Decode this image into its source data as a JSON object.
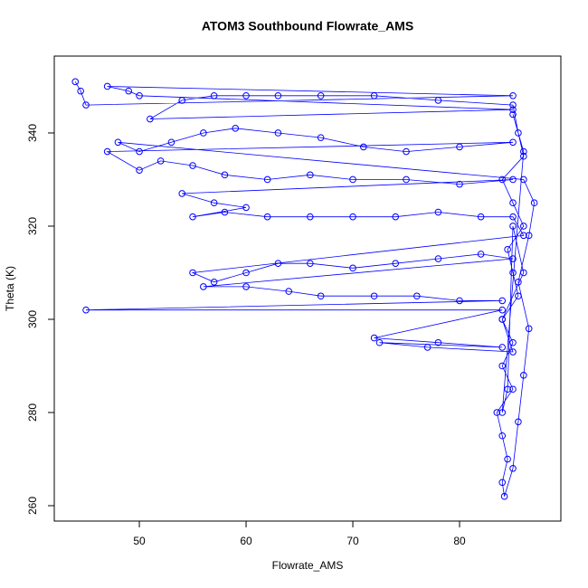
{
  "chart_data": {
    "type": "line",
    "title": "ATOM3 Southbound Flowrate_AMS",
    "xlabel": "Flowrate_AMS",
    "ylabel": "Theta (K)",
    "color": "#0000ff",
    "x": [
      44,
      44.5,
      45,
      85,
      47,
      49,
      50,
      85,
      51,
      54,
      57,
      60,
      63,
      67,
      72,
      78,
      85,
      85.5,
      86,
      84,
      85,
      86,
      84.5,
      85,
      85.5,
      84,
      85,
      84,
      85,
      83.5,
      84,
      84.5,
      84,
      84.2,
      85,
      85.5,
      86,
      86.5,
      85.5,
      86.5,
      87,
      86,
      48,
      50,
      53,
      56,
      59,
      63,
      67,
      71,
      75,
      80,
      85,
      47,
      50,
      52,
      55,
      58,
      62,
      66,
      70,
      75,
      80,
      85,
      54,
      57,
      60,
      55,
      58,
      62,
      66,
      70,
      74,
      78,
      82,
      85,
      86,
      55,
      57,
      60,
      63,
      66,
      70,
      74,
      78,
      82,
      85,
      56,
      60,
      64,
      67,
      72,
      76,
      80,
      84,
      45,
      84,
      72,
      78,
      84,
      72.5,
      77,
      85,
      84,
      86,
      85,
      84.5,
      84,
      86,
      85
    ],
    "values": [
      351,
      349,
      346,
      348,
      350,
      349,
      348,
      345,
      343,
      347,
      348,
      348,
      348,
      348,
      348,
      347,
      346,
      340,
      335,
      330,
      325,
      320,
      315,
      310,
      305,
      300,
      295,
      290,
      285,
      280,
      275,
      270,
      265,
      262,
      268,
      278,
      288,
      298,
      308,
      318,
      325,
      330,
      338,
      336,
      338,
      340,
      341,
      340,
      339,
      337,
      336,
      337,
      338,
      336,
      332,
      334,
      333,
      331,
      330,
      331,
      330,
      330,
      329,
      330,
      327,
      325,
      324,
      322,
      323,
      322,
      322,
      322,
      322,
      323,
      322,
      322,
      318,
      310,
      308,
      310,
      312,
      312,
      311,
      312,
      313,
      314,
      313,
      307,
      307,
      306,
      305,
      305,
      305,
      304,
      304,
      302,
      302,
      296,
      295,
      294,
      295,
      294,
      293,
      300,
      310,
      320,
      285,
      280,
      336,
      344
    ],
    "xlim": [
      42.03,
      89.49
    ],
    "ylim": [
      256.7,
      356.5
    ],
    "xticks": [
      50,
      60,
      70,
      80
    ],
    "yticks": [
      260,
      280,
      300,
      320,
      340
    ]
  }
}
